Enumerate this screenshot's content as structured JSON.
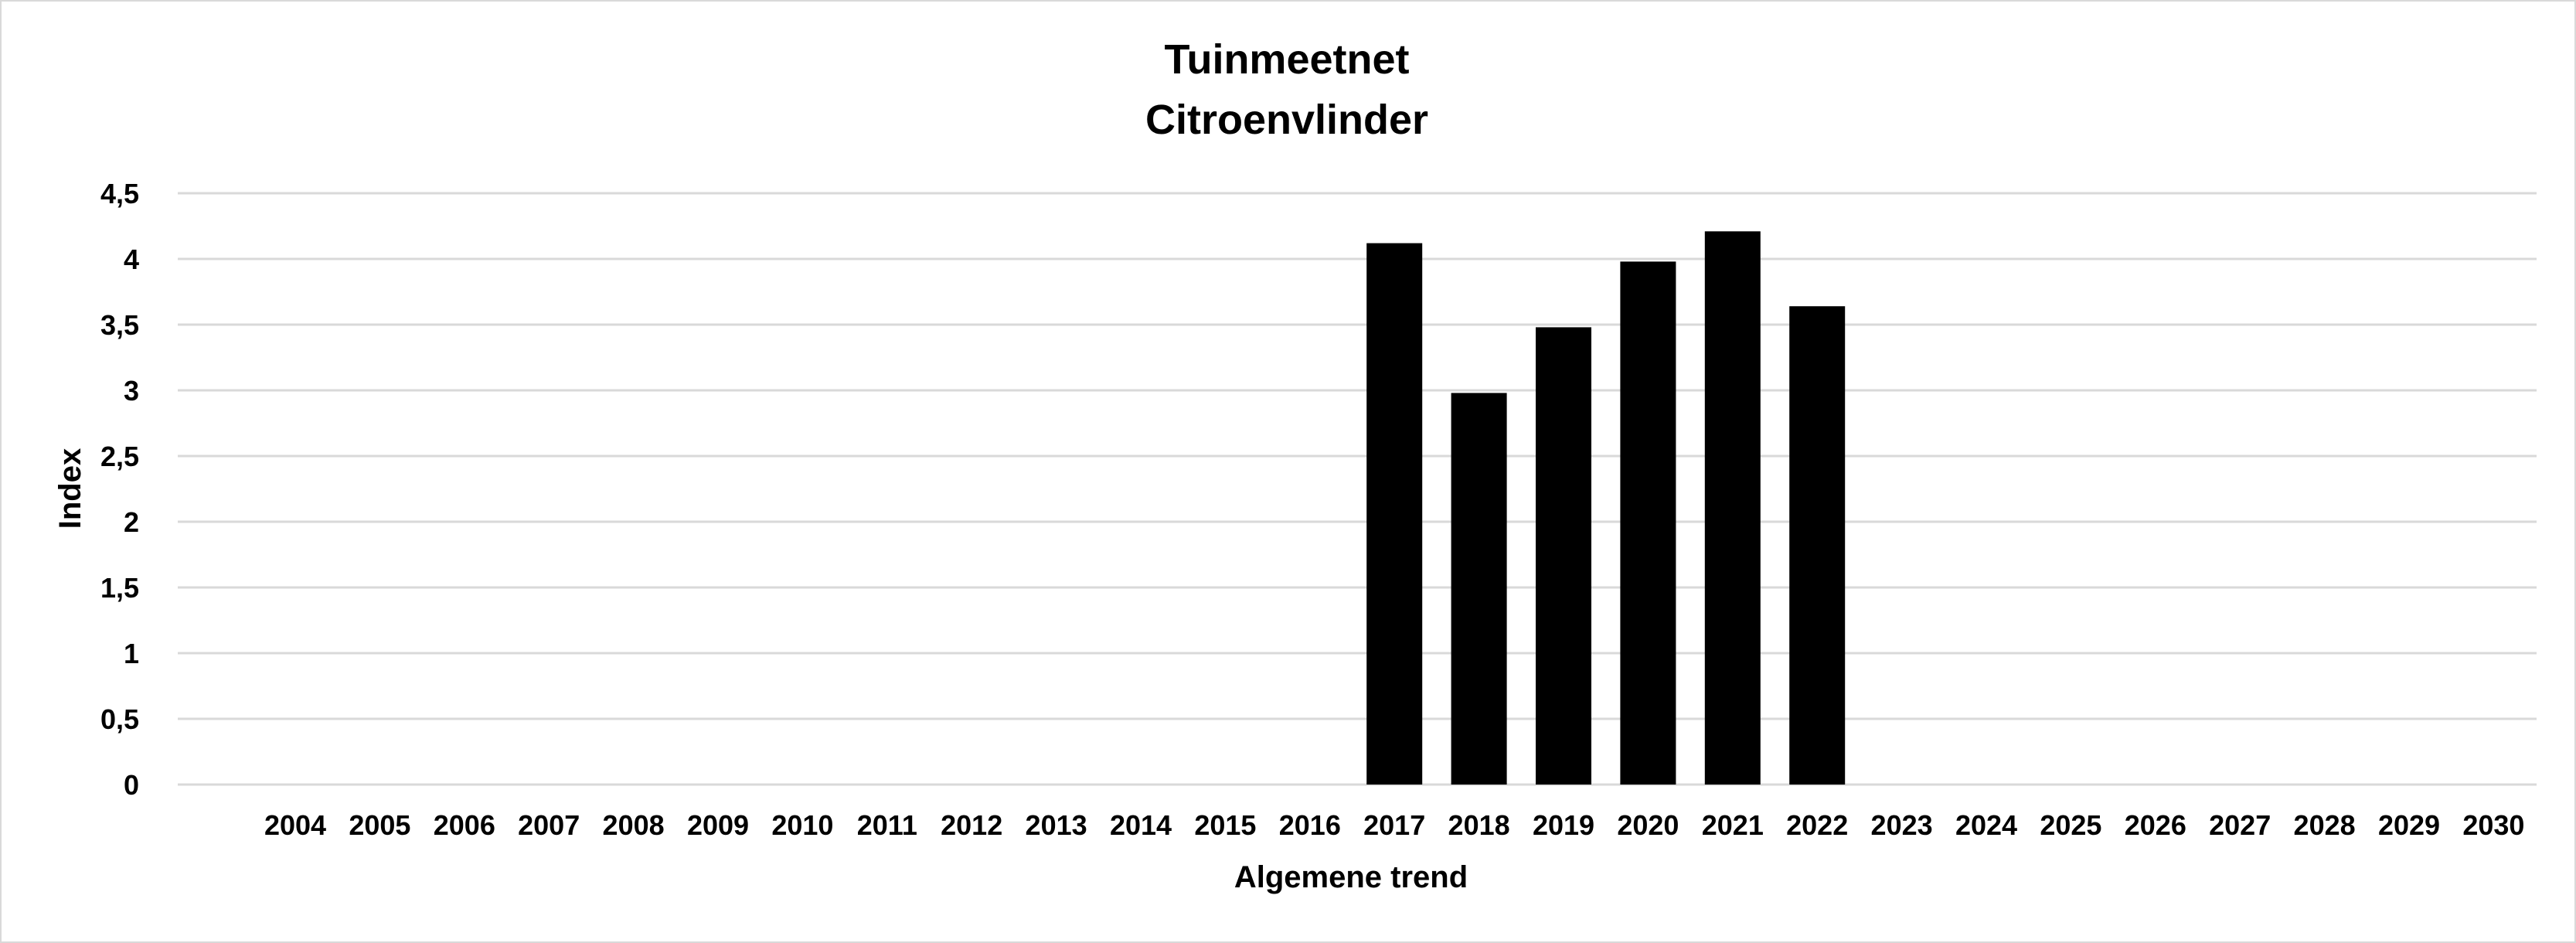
{
  "chart_data": {
    "type": "bar",
    "title": "Tuinmeetnet",
    "subtitle": "Citroenvlinder",
    "xlabel": "Algemene trend",
    "ylabel": "Index",
    "categories": [
      "2004",
      "2005",
      "2006",
      "2007",
      "2008",
      "2009",
      "2010",
      "2011",
      "2012",
      "2013",
      "2014",
      "2015",
      "2016",
      "2017",
      "2018",
      "2019",
      "2020",
      "2021",
      "2022",
      "2023",
      "2024",
      "2025",
      "2026",
      "2027",
      "2028",
      "2029",
      "2030"
    ],
    "values": [
      null,
      null,
      null,
      null,
      null,
      null,
      null,
      null,
      null,
      null,
      null,
      null,
      null,
      4.12,
      2.98,
      3.48,
      3.98,
      4.21,
      3.64,
      null,
      null,
      null,
      null,
      null,
      null,
      null,
      null
    ],
    "ylim": [
      0,
      4.5
    ],
    "yticks": [
      0,
      0.5,
      1,
      1.5,
      2,
      2.5,
      3,
      3.5,
      4,
      4.5
    ],
    "ytick_labels": [
      "0",
      "0,5",
      "1",
      "1,5",
      "2",
      "2,5",
      "3",
      "3,5",
      "4",
      "4,5"
    ],
    "grid": true,
    "legend": "none",
    "bar_color": "#000000",
    "grid_color": "#d9d9d9"
  }
}
